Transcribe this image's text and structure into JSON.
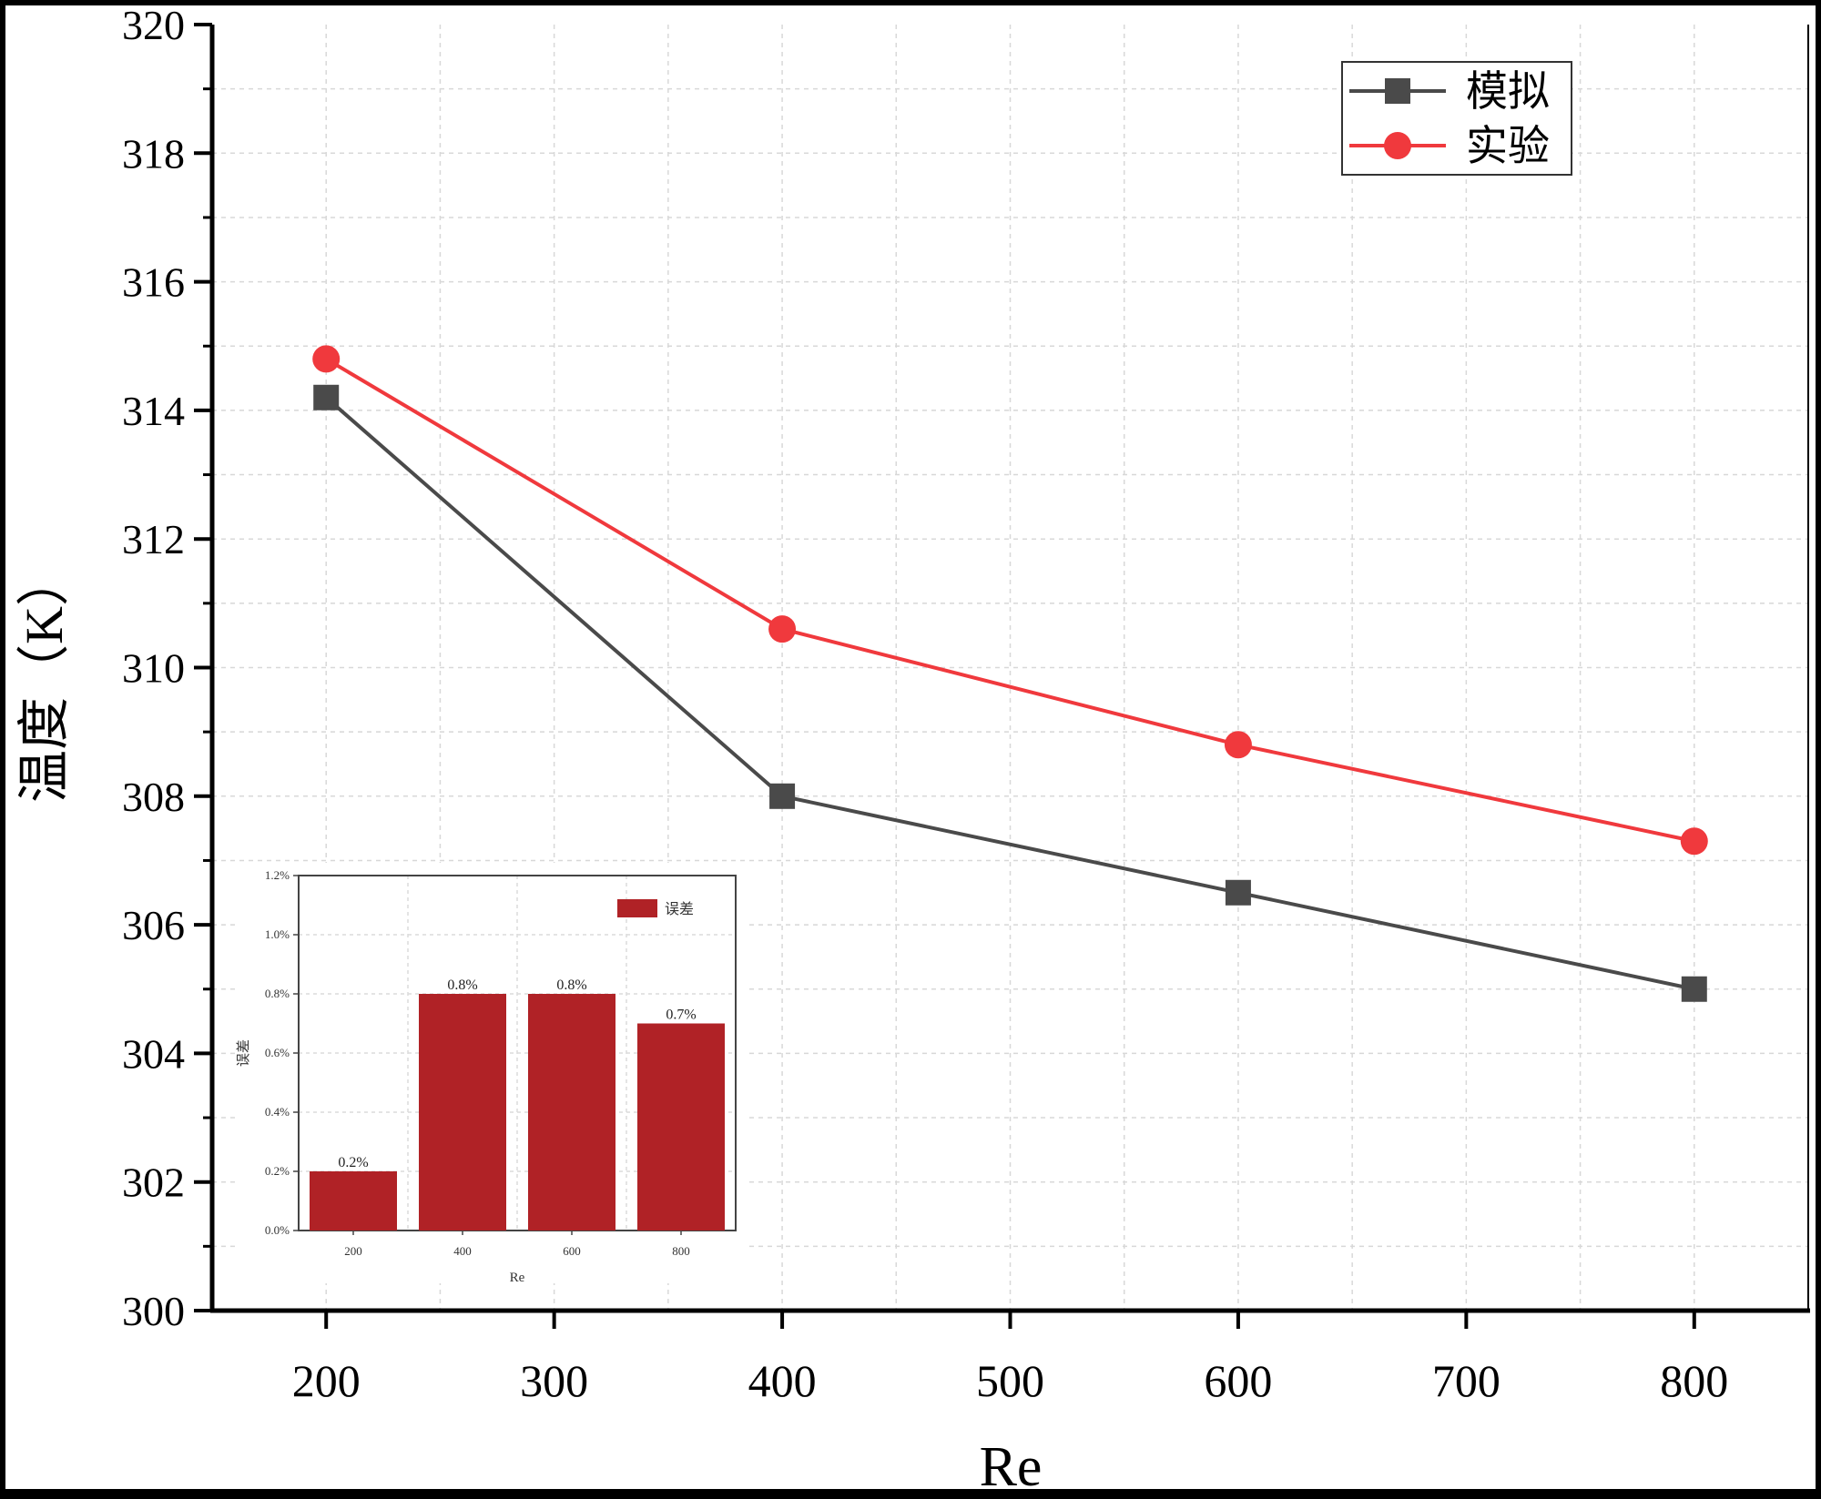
{
  "chart_data": [
    {
      "type": "line",
      "title": "",
      "xlabel": "Re",
      "ylabel": "温度（K）",
      "xlim": [
        150,
        850
      ],
      "ylim": [
        300,
        320
      ],
      "xticks": [
        "200",
        "300",
        "400",
        "500",
        "600",
        "700",
        "800"
      ],
      "yticks": [
        "300",
        "302",
        "304",
        "306",
        "308",
        "310",
        "312",
        "314",
        "316",
        "318",
        "320"
      ],
      "grid": true,
      "legend_position": "top-right",
      "series": [
        {
          "name": "模拟",
          "color": "#4a4a4a",
          "marker": "square",
          "x": [
            200,
            400,
            600,
            800
          ],
          "y": [
            314.2,
            308.0,
            306.5,
            305.0
          ]
        },
        {
          "name": "实验",
          "color": "#f0393d",
          "marker": "circle",
          "x": [
            200,
            400,
            600,
            800
          ],
          "y": [
            314.8,
            310.6,
            308.8,
            307.3
          ]
        }
      ]
    },
    {
      "type": "bar",
      "title": "",
      "xlabel": "Re",
      "ylabel": "误差",
      "categories": [
        "200",
        "400",
        "600",
        "800"
      ],
      "yticks": [
        "0.0%",
        "0.2%",
        "0.4%",
        "0.6%",
        "0.8%",
        "1.0%",
        "1.2%"
      ],
      "ylim": [
        0,
        1.2
      ],
      "grid": true,
      "legend_position": "top-right",
      "color": "#b02226",
      "series": [
        {
          "name": "误差",
          "values": [
            0.2,
            0.8,
            0.8,
            0.7
          ],
          "labels": [
            "0.2%",
            "0.8%",
            "0.8%",
            "0.7%"
          ]
        }
      ]
    }
  ]
}
